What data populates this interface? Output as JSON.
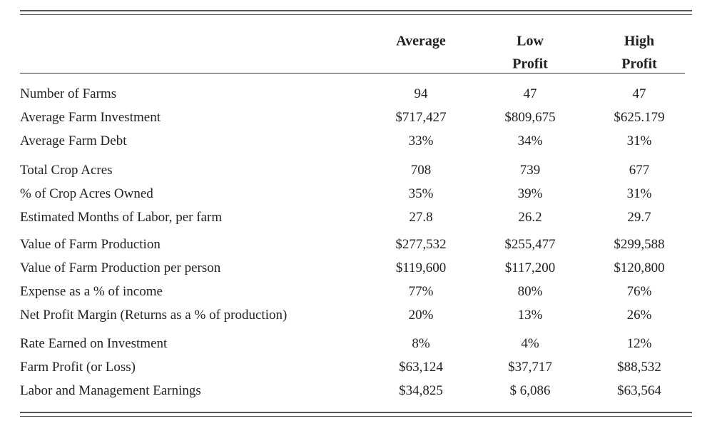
{
  "table": {
    "columns": [
      [
        "Average"
      ],
      [
        "Low",
        "Profit"
      ],
      [
        "High",
        "Profit"
      ]
    ],
    "groups": [
      [
        [
          "Number of Farms",
          "94",
          "47",
          "47"
        ],
        [
          "Average Farm Investment",
          "$717,427",
          "$809,675",
          "$625.179"
        ],
        [
          "Average Farm Debt",
          "33%",
          "34%",
          "31%"
        ]
      ],
      [
        [
          "Total Crop Acres",
          "708",
          "739",
          "677"
        ],
        [
          "% of Crop Acres Owned",
          "35%",
          "39%",
          "31%"
        ],
        [
          "Estimated Months of Labor, per farm",
          "27.8",
          "26.2",
          "29.7"
        ]
      ],
      [
        [
          "Value of Farm Production",
          "$277,532",
          "$255,477",
          "$299,588"
        ],
        [
          "Value of Farm Production per person",
          "$119,600",
          "$117,200",
          "$120,800"
        ],
        [
          "Expense as a % of income",
          "77%",
          "80%",
          "76%"
        ],
        [
          "Net Profit Margin (Returns as a % of production)",
          "20%",
          "13%",
          "26%"
        ]
      ],
      [
        [
          "Rate Earned on Investment",
          "8%",
          "4%",
          "12%"
        ],
        [
          "Farm Profit (or Loss)",
          "$63,124",
          "$37,717",
          "$88,532"
        ],
        [
          "Labor and Management Earnings",
          "$34,825",
          "$ 6,086",
          "$63,564"
        ]
      ]
    ]
  }
}
